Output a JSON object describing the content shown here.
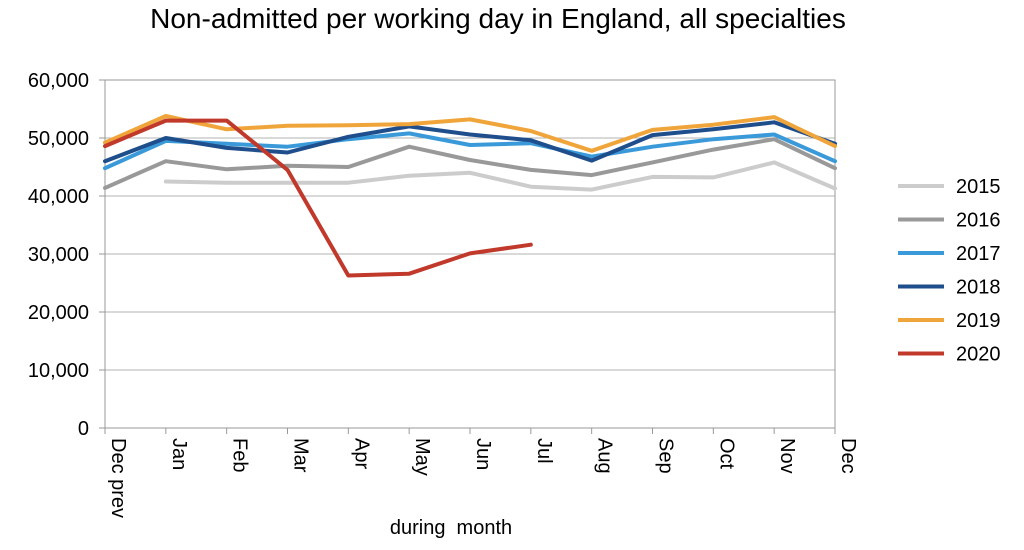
{
  "chart_data": {
    "type": "line",
    "title": "Non-admitted per working day in England, all specialties",
    "xlabel": "during  month",
    "ylabel": "",
    "ylim": [
      0,
      60000
    ],
    "yticks": [
      "0",
      "10,000",
      "20,000",
      "30,000",
      "40,000",
      "50,000",
      "60,000"
    ],
    "categories": [
      "Dec prev",
      "Jan",
      "Feb",
      "Mar",
      "Apr",
      "May",
      "Jun",
      "Jul",
      "Aug",
      "Sep",
      "Oct",
      "Nov",
      "Dec"
    ],
    "grid": true,
    "legend_position": "right",
    "series": [
      {
        "name": "2015",
        "color": "#cccccc",
        "values": [
          null,
          42500,
          42300,
          42300,
          42300,
          43500,
          44000,
          41600,
          41100,
          43300,
          43200,
          45800,
          41300
        ]
      },
      {
        "name": "2016",
        "color": "#999999",
        "values": [
          41400,
          46000,
          44600,
          45200,
          45000,
          48500,
          46200,
          44500,
          43600,
          45800,
          48000,
          49800,
          44800
        ]
      },
      {
        "name": "2017",
        "color": "#3a9ad9",
        "values": [
          44800,
          49500,
          49000,
          48500,
          49800,
          50800,
          48800,
          49100,
          46800,
          48500,
          49800,
          50600,
          46000
        ]
      },
      {
        "name": "2018",
        "color": "#1f4e8c",
        "values": [
          46000,
          50000,
          48300,
          47500,
          50200,
          52000,
          50600,
          49600,
          46100,
          50500,
          51500,
          52700,
          49000
        ]
      },
      {
        "name": "2019",
        "color": "#f0a53a",
        "values": [
          49200,
          53800,
          51500,
          52100,
          52200,
          52400,
          53200,
          51200,
          47800,
          51400,
          52300,
          53600,
          48600
        ]
      },
      {
        "name": "2020",
        "color": "#c0392b",
        "values": [
          48600,
          53000,
          53000,
          44500,
          26300,
          26600,
          30100,
          31600,
          null,
          null,
          null,
          null,
          null
        ]
      }
    ]
  }
}
